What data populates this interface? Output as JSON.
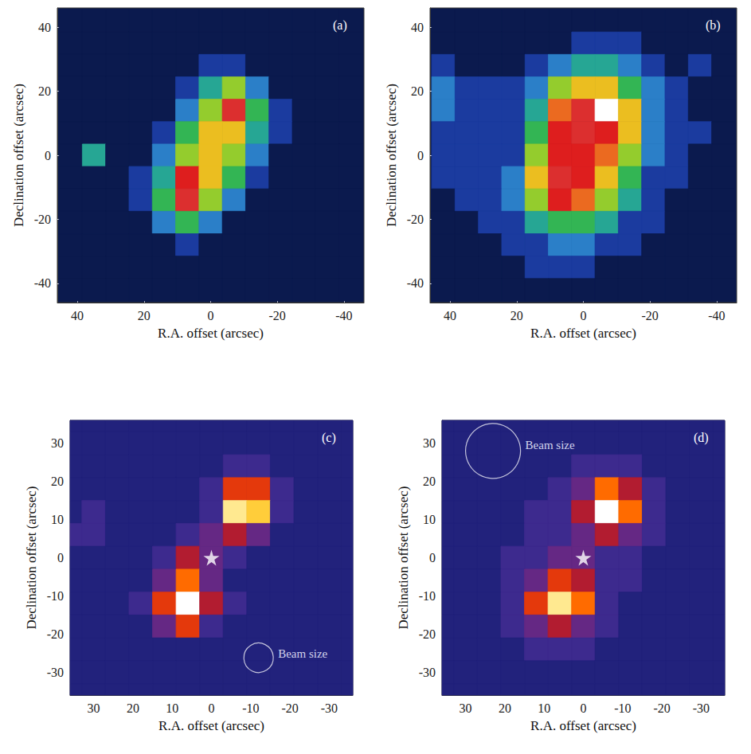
{
  "chart_data": [
    {
      "type": "heatmap",
      "title": "(a)",
      "x_label": "R.A. offset (arcsec)",
      "y_label": "Declination offset (arcsec)",
      "xlim": [
        46,
        -46
      ],
      "ylim": [
        -46,
        46
      ],
      "xticks": [
        40,
        20,
        0,
        -20,
        -40
      ],
      "yticks": [
        -40,
        -20,
        0,
        20,
        40
      ],
      "color_range": [
        0,
        10
      ],
      "x": [
        42,
        35,
        28,
        21,
        14,
        7,
        0,
        -7,
        -14,
        -21,
        -28,
        -35,
        -42
      ],
      "y": [
        42,
        35,
        28,
        21,
        14,
        7,
        0,
        -7,
        -14,
        -21,
        -28,
        -35,
        -42
      ],
      "values": [
        [
          0,
          0,
          0,
          0,
          0,
          0,
          0,
          0,
          0,
          0,
          0,
          0,
          0
        ],
        [
          0,
          0,
          0,
          0,
          0,
          0,
          0,
          0,
          0,
          0,
          0,
          0,
          0
        ],
        [
          0,
          0,
          0,
          0,
          0,
          0,
          1,
          1,
          0,
          0,
          0,
          0,
          0
        ],
        [
          0,
          0,
          0,
          0,
          0,
          1,
          3,
          5,
          2,
          0,
          0,
          0,
          0
        ],
        [
          0,
          0,
          0,
          0,
          0,
          2,
          5,
          9,
          4,
          1,
          0,
          0,
          0
        ],
        [
          0,
          0,
          0,
          0,
          1,
          4,
          6,
          6,
          3,
          1,
          0,
          0,
          0
        ],
        [
          0,
          3,
          0,
          0,
          2,
          5,
          6,
          5,
          2,
          0,
          0,
          0,
          0
        ],
        [
          0,
          0,
          0,
          1,
          3,
          8,
          6,
          4,
          1,
          0,
          0,
          0,
          0
        ],
        [
          0,
          0,
          0,
          1,
          4,
          9,
          5,
          2,
          0,
          0,
          0,
          0,
          0
        ],
        [
          0,
          0,
          0,
          0,
          2,
          4,
          2,
          0,
          0,
          0,
          0,
          0,
          0
        ],
        [
          0,
          0,
          0,
          0,
          0,
          1,
          0,
          0,
          0,
          0,
          0,
          0,
          0
        ],
        [
          0,
          0,
          0,
          0,
          0,
          0,
          0,
          0,
          0,
          0,
          0,
          0,
          0
        ],
        [
          0,
          0,
          0,
          0,
          0,
          0,
          0,
          0,
          0,
          0,
          0,
          0,
          0
        ]
      ]
    },
    {
      "type": "heatmap",
      "title": "(b)",
      "x_label": "R.A. offset (arcsec)",
      "y_label": "Declination offset (arcsec)",
      "xlim": [
        46,
        -46
      ],
      "ylim": [
        -46,
        46
      ],
      "xticks": [
        40,
        20,
        0,
        -20,
        -40
      ],
      "yticks": [
        -40,
        -20,
        0,
        20,
        40
      ],
      "color_range": [
        0,
        10
      ],
      "x": [
        42,
        35,
        28,
        21,
        14,
        7,
        0,
        -7,
        -14,
        -21,
        -28,
        -35,
        -42
      ],
      "y": [
        42,
        35,
        28,
        21,
        14,
        7,
        0,
        -7,
        -14,
        -21,
        -28,
        -35,
        -42
      ],
      "values": [
        [
          0,
          0,
          0,
          0,
          0,
          0,
          0,
          0,
          0,
          0,
          0,
          0,
          0
        ],
        [
          0,
          0,
          0,
          0,
          0,
          0,
          1,
          1,
          1,
          0,
          0,
          0,
          0
        ],
        [
          1,
          0,
          0,
          0,
          1,
          2,
          3,
          3,
          2,
          1,
          0,
          1,
          0
        ],
        [
          2,
          1,
          1,
          1,
          2,
          5,
          6,
          6,
          4,
          2,
          1,
          0,
          0
        ],
        [
          2,
          1,
          1,
          1,
          3,
          7,
          9,
          10,
          6,
          2,
          1,
          0,
          0
        ],
        [
          1,
          1,
          1,
          1,
          4,
          8,
          9,
          8,
          6,
          2,
          1,
          1,
          0
        ],
        [
          1,
          1,
          1,
          1,
          5,
          8,
          8,
          7,
          5,
          2,
          1,
          0,
          0
        ],
        [
          1,
          1,
          1,
          2,
          6,
          9,
          8,
          6,
          4,
          1,
          1,
          0,
          0
        ],
        [
          0,
          1,
          1,
          2,
          5,
          8,
          7,
          5,
          3,
          1,
          0,
          0,
          0
        ],
        [
          0,
          0,
          1,
          1,
          3,
          4,
          4,
          3,
          1,
          1,
          0,
          0,
          0
        ],
        [
          0,
          0,
          0,
          1,
          1,
          2,
          2,
          1,
          1,
          0,
          0,
          0,
          0
        ],
        [
          0,
          0,
          0,
          0,
          1,
          1,
          1,
          0,
          0,
          0,
          0,
          0,
          0
        ],
        [
          0,
          0,
          0,
          0,
          0,
          0,
          0,
          0,
          0,
          0,
          0,
          0,
          0
        ]
      ]
    },
    {
      "type": "heatmap",
      "title": "(c)",
      "x_label": "R.A. offset (arcsec)",
      "y_label": "Declination offset (arcsec)",
      "xlim": [
        36,
        -36
      ],
      "ylim": [
        -36,
        36
      ],
      "xticks": [
        30,
        20,
        10,
        0,
        -10,
        -20,
        -30
      ],
      "yticks": [
        -30,
        -20,
        -10,
        0,
        10,
        20,
        30
      ],
      "color_range": [
        0,
        10
      ],
      "x": [
        36,
        30,
        24,
        18,
        12,
        6,
        0,
        -6,
        -12,
        -18,
        -24,
        -30,
        -36
      ],
      "y": [
        36,
        30,
        24,
        18,
        12,
        6,
        0,
        -6,
        -12,
        -18,
        -24,
        -30,
        -36
      ],
      "values": [
        [
          1,
          1,
          1,
          1,
          1,
          1,
          1,
          1,
          1,
          1,
          1,
          1,
          1
        ],
        [
          1,
          1,
          1,
          1,
          1,
          1,
          1,
          1,
          1,
          1,
          1,
          1,
          1
        ],
        [
          1,
          1,
          1,
          1,
          1,
          1,
          1,
          2,
          2,
          1,
          1,
          1,
          1
        ],
        [
          1,
          1,
          1,
          1,
          1,
          1,
          2,
          5,
          5,
          2,
          1,
          1,
          1
        ],
        [
          1,
          2,
          1,
          1,
          1,
          1,
          2,
          9,
          8,
          2,
          1,
          1,
          1
        ],
        [
          2,
          2,
          1,
          1,
          1,
          2,
          3,
          4,
          3,
          1,
          1,
          1,
          1
        ],
        [
          1,
          1,
          1,
          1,
          2,
          4,
          3,
          2,
          1,
          1,
          1,
          1,
          1
        ],
        [
          1,
          1,
          1,
          1,
          3,
          6,
          3,
          1,
          1,
          1,
          1,
          1,
          1
        ],
        [
          1,
          1,
          1,
          2,
          5,
          10,
          4,
          2,
          1,
          1,
          1,
          1,
          1
        ],
        [
          1,
          1,
          1,
          1,
          3,
          5,
          2,
          1,
          1,
          1,
          1,
          1,
          1
        ],
        [
          1,
          1,
          1,
          1,
          1,
          1,
          1,
          1,
          1,
          1,
          1,
          1,
          1
        ],
        [
          1,
          1,
          1,
          1,
          1,
          1,
          1,
          1,
          1,
          1,
          1,
          1,
          1
        ],
        [
          1,
          1,
          1,
          1,
          1,
          1,
          1,
          1,
          1,
          1,
          1,
          1,
          1
        ]
      ],
      "points": [
        {
          "x": 0,
          "y": 0,
          "marker": "star"
        }
      ],
      "beam": {
        "x": -12,
        "y": -26,
        "diameter": 7.5,
        "label": "Beam size"
      }
    },
    {
      "type": "heatmap",
      "title": "(d)",
      "x_label": "R.A. offset (arcsec)",
      "y_label": "Declination offset (arcsec)",
      "xlim": [
        36,
        -36
      ],
      "ylim": [
        -36,
        36
      ],
      "xticks": [
        30,
        20,
        10,
        0,
        -10,
        -20,
        -30
      ],
      "yticks": [
        -30,
        -20,
        -10,
        0,
        10,
        20,
        30
      ],
      "color_range": [
        0,
        10
      ],
      "x": [
        36,
        30,
        24,
        18,
        12,
        6,
        0,
        -6,
        -12,
        -18,
        -24,
        -30,
        -36
      ],
      "y": [
        36,
        30,
        24,
        18,
        12,
        6,
        0,
        -6,
        -12,
        -18,
        -24,
        -30,
        -36
      ],
      "values": [
        [
          1,
          1,
          1,
          1,
          1,
          1,
          1,
          1,
          1,
          1,
          1,
          1,
          1
        ],
        [
          1,
          1,
          1,
          1,
          1,
          1,
          1,
          1,
          1,
          1,
          1,
          1,
          1
        ],
        [
          1,
          1,
          1,
          1,
          1,
          1,
          2,
          2,
          2,
          1,
          1,
          1,
          1
        ],
        [
          1,
          1,
          1,
          1,
          1,
          2,
          3,
          6,
          4,
          2,
          1,
          1,
          1
        ],
        [
          1,
          1,
          1,
          1,
          2,
          2,
          4,
          10,
          6,
          2,
          1,
          1,
          1
        ],
        [
          1,
          1,
          1,
          1,
          2,
          2,
          3,
          4,
          3,
          2,
          1,
          1,
          1
        ],
        [
          1,
          1,
          1,
          2,
          2,
          3,
          3,
          2,
          2,
          1,
          1,
          1,
          1
        ],
        [
          1,
          1,
          1,
          2,
          3,
          5,
          4,
          2,
          2,
          1,
          1,
          1,
          1
        ],
        [
          1,
          1,
          1,
          2,
          5,
          9,
          6,
          2,
          1,
          1,
          1,
          1,
          1
        ],
        [
          1,
          1,
          1,
          2,
          3,
          4,
          3,
          2,
          1,
          1,
          1,
          1,
          1
        ],
        [
          1,
          1,
          1,
          1,
          2,
          2,
          2,
          1,
          1,
          1,
          1,
          1,
          1
        ],
        [
          1,
          1,
          1,
          1,
          1,
          1,
          1,
          1,
          1,
          1,
          1,
          1,
          1
        ],
        [
          1,
          1,
          1,
          1,
          1,
          1,
          1,
          1,
          1,
          1,
          1,
          1,
          1
        ]
      ],
      "points": [
        {
          "x": 0,
          "y": 0,
          "marker": "star"
        }
      ],
      "beam": {
        "x": 23,
        "y": 28,
        "diameter": 14,
        "label": "Beam size"
      }
    }
  ]
}
